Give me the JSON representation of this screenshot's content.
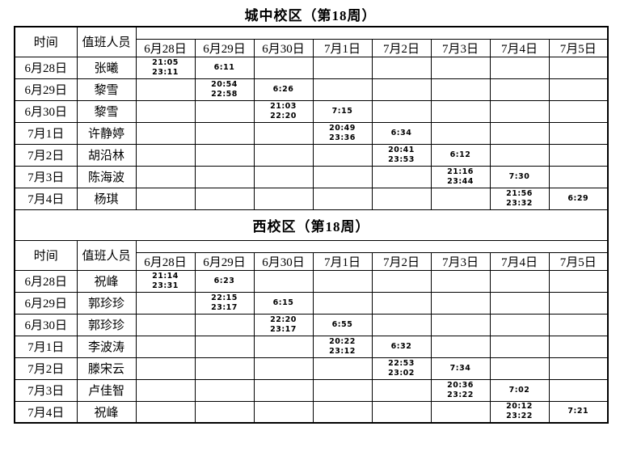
{
  "colors": {
    "text": "#000000",
    "border": "#000000",
    "background": "#ffffff"
  },
  "sections": [
    {
      "title": "城中校区（第18周）",
      "header": {
        "time_label": "时间",
        "staff_label": "值班人员",
        "dates": [
          "6月28日",
          "6月29日",
          "6月30日",
          "7月1日",
          "7月2日",
          "7月3日",
          "7月4日",
          "7月5日"
        ]
      },
      "rows": [
        {
          "date": "6月28日",
          "name": "张曦",
          "cells": [
            [
              "21:05",
              "23:11"
            ],
            [
              "6:11"
            ],
            [],
            [],
            [],
            [],
            [],
            []
          ]
        },
        {
          "date": "6月29日",
          "name": "黎雪",
          "cells": [
            [],
            [
              "20:54",
              "22:58"
            ],
            [
              "6:26"
            ],
            [],
            [],
            [],
            [],
            []
          ]
        },
        {
          "date": "6月30日",
          "name": "黎雪",
          "cells": [
            [],
            [],
            [
              "21:03",
              "22:20"
            ],
            [
              "7:15"
            ],
            [],
            [],
            [],
            []
          ]
        },
        {
          "date": "7月1日",
          "name": "许静婷",
          "cells": [
            [],
            [],
            [],
            [
              "20:49",
              "23:36"
            ],
            [
              "6:34"
            ],
            [],
            [],
            []
          ]
        },
        {
          "date": "7月2日",
          "name": "胡沿林",
          "cells": [
            [],
            [],
            [],
            [],
            [
              "20:41",
              "23:53"
            ],
            [
              "6:12"
            ],
            [],
            []
          ]
        },
        {
          "date": "7月3日",
          "name": "陈海波",
          "cells": [
            [],
            [],
            [],
            [],
            [],
            [
              "21:16",
              "23:44"
            ],
            [
              "7:30"
            ],
            []
          ]
        },
        {
          "date": "7月4日",
          "name": "杨琪",
          "cells": [
            [],
            [],
            [],
            [],
            [],
            [],
            [
              "21:56",
              "23:32"
            ],
            [
              "6:29"
            ]
          ]
        }
      ]
    },
    {
      "title": "西校区（第18周）",
      "header": {
        "time_label": "时间",
        "staff_label": "值班人员",
        "dates": [
          "6月28日",
          "6月29日",
          "6月30日",
          "7月1日",
          "7月2日",
          "7月3日",
          "7月4日",
          "7月5日"
        ]
      },
      "rows": [
        {
          "date": "6月28日",
          "name": "祝峰",
          "cells": [
            [
              "21:14",
              "23:31"
            ],
            [
              "6:23"
            ],
            [],
            [],
            [],
            [],
            [],
            []
          ]
        },
        {
          "date": "6月29日",
          "name": "郭珍珍",
          "cells": [
            [],
            [
              "22:15",
              "23:17"
            ],
            [
              "6:15"
            ],
            [],
            [],
            [],
            [],
            []
          ]
        },
        {
          "date": "6月30日",
          "name": "郭珍珍",
          "cells": [
            [],
            [],
            [
              "22:20",
              "23:17"
            ],
            [
              "6:55"
            ],
            [],
            [],
            [],
            []
          ]
        },
        {
          "date": "7月1日",
          "name": "李波涛",
          "cells": [
            [],
            [],
            [],
            [
              "20:22",
              "23:12"
            ],
            [
              "6:32"
            ],
            [],
            [],
            []
          ]
        },
        {
          "date": "7月2日",
          "name": "滕宋云",
          "cells": [
            [],
            [],
            [],
            [],
            [
              "22:53",
              "23:02"
            ],
            [
              "7:34"
            ],
            [],
            []
          ]
        },
        {
          "date": "7月3日",
          "name": "卢佳智",
          "cells": [
            [],
            [],
            [],
            [],
            [],
            [
              "20:36",
              "23:22"
            ],
            [
              "7:02"
            ],
            []
          ]
        },
        {
          "date": "7月4日",
          "name": "祝峰",
          "cells": [
            [],
            [],
            [],
            [],
            [],
            [],
            [
              "20:12",
              "23:22"
            ],
            [
              "7:21"
            ]
          ]
        }
      ]
    }
  ]
}
